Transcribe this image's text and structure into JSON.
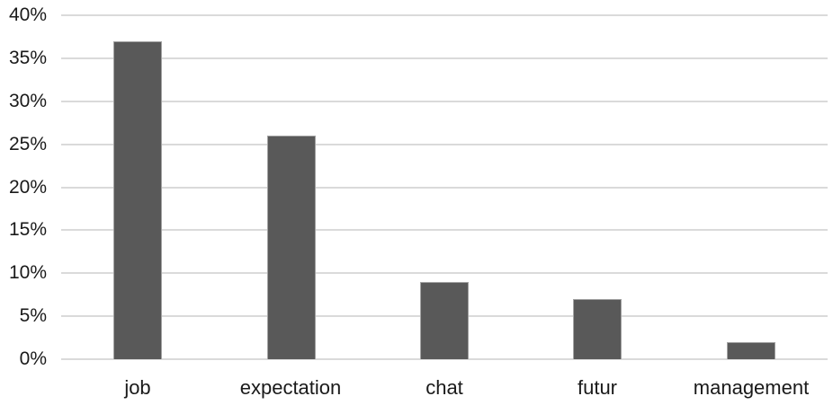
{
  "chart_data": {
    "type": "bar",
    "title": "",
    "xlabel": "",
    "ylabel": "",
    "categories": [
      "job",
      "expectation",
      "chat",
      "futur",
      "management"
    ],
    "values": [
      37,
      26,
      9,
      7,
      2
    ],
    "value_unit": "%",
    "ylim": [
      0,
      40
    ],
    "ytick_step": 5,
    "ytick_labels": [
      "0%",
      "5%",
      "10%",
      "15%",
      "20%",
      "25%",
      "30%",
      "35%",
      "40%"
    ],
    "grid": true,
    "legend": false
  },
  "colors": {
    "bar": "#595959",
    "bar_border": "#a3a3a3",
    "gridline": "#dadada",
    "axis_text": "#1a1a1a",
    "background": "#ffffff"
  }
}
